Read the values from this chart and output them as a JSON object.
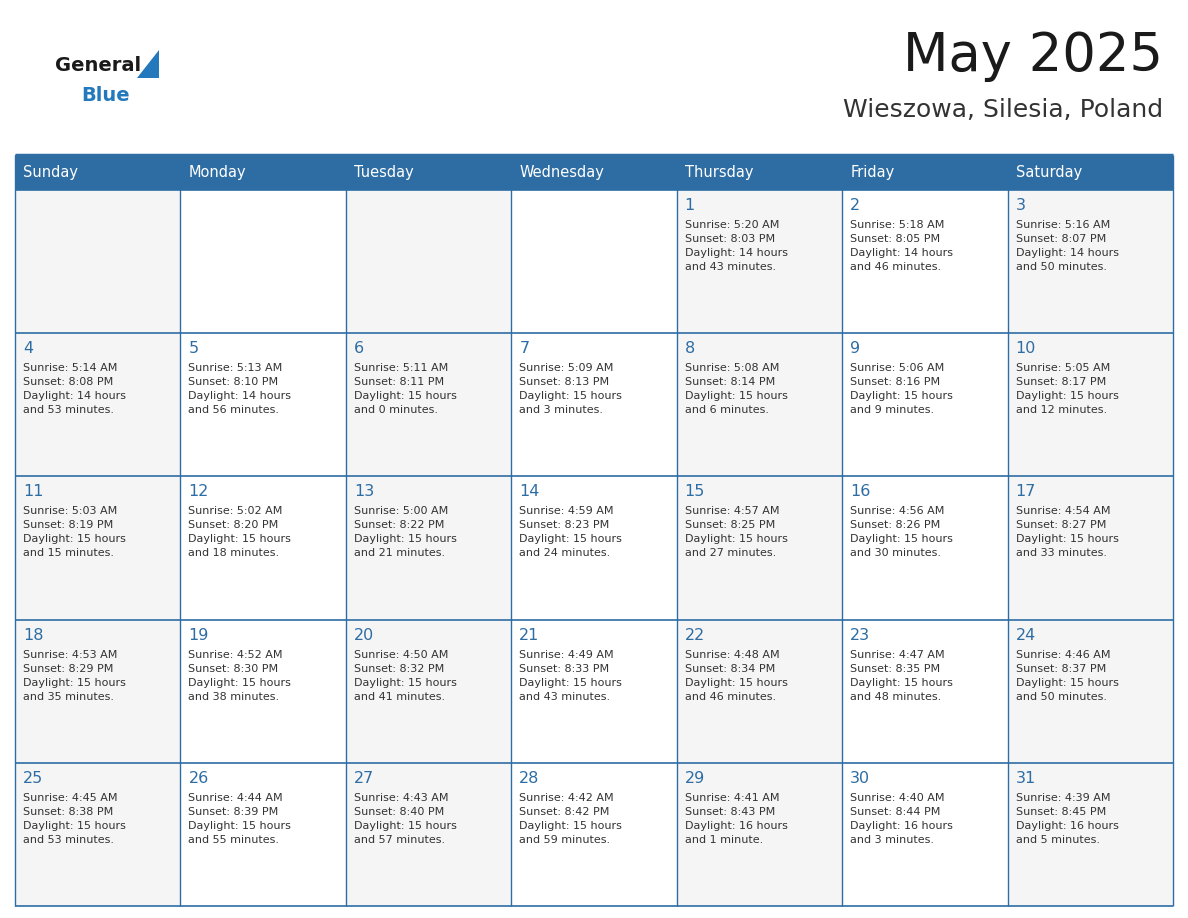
{
  "title": "May 2025",
  "subtitle": "Wieszowa, Silesia, Poland",
  "header_bg": "#2E6DA4",
  "header_text": "#FFFFFF",
  "cell_bg_even": "#F5F5F5",
  "cell_bg_odd": "#FFFFFF",
  "day_headers": [
    "Sunday",
    "Monday",
    "Tuesday",
    "Wednesday",
    "Thursday",
    "Friday",
    "Saturday"
  ],
  "title_color": "#1a1a1a",
  "subtitle_color": "#333333",
  "day_num_color": "#2E6DA4",
  "cell_text_color": "#333333",
  "grid_color": "#2E6DA4",
  "logo_general_color": "#1a1a1a",
  "logo_blue_color": "#2479BD",
  "weeks": [
    [
      {
        "day": "",
        "text": ""
      },
      {
        "day": "",
        "text": ""
      },
      {
        "day": "",
        "text": ""
      },
      {
        "day": "",
        "text": ""
      },
      {
        "day": "1",
        "text": "Sunrise: 5:20 AM\nSunset: 8:03 PM\nDaylight: 14 hours\nand 43 minutes."
      },
      {
        "day": "2",
        "text": "Sunrise: 5:18 AM\nSunset: 8:05 PM\nDaylight: 14 hours\nand 46 minutes."
      },
      {
        "day": "3",
        "text": "Sunrise: 5:16 AM\nSunset: 8:07 PM\nDaylight: 14 hours\nand 50 minutes."
      }
    ],
    [
      {
        "day": "4",
        "text": "Sunrise: 5:14 AM\nSunset: 8:08 PM\nDaylight: 14 hours\nand 53 minutes."
      },
      {
        "day": "5",
        "text": "Sunrise: 5:13 AM\nSunset: 8:10 PM\nDaylight: 14 hours\nand 56 minutes."
      },
      {
        "day": "6",
        "text": "Sunrise: 5:11 AM\nSunset: 8:11 PM\nDaylight: 15 hours\nand 0 minutes."
      },
      {
        "day": "7",
        "text": "Sunrise: 5:09 AM\nSunset: 8:13 PM\nDaylight: 15 hours\nand 3 minutes."
      },
      {
        "day": "8",
        "text": "Sunrise: 5:08 AM\nSunset: 8:14 PM\nDaylight: 15 hours\nand 6 minutes."
      },
      {
        "day": "9",
        "text": "Sunrise: 5:06 AM\nSunset: 8:16 PM\nDaylight: 15 hours\nand 9 minutes."
      },
      {
        "day": "10",
        "text": "Sunrise: 5:05 AM\nSunset: 8:17 PM\nDaylight: 15 hours\nand 12 minutes."
      }
    ],
    [
      {
        "day": "11",
        "text": "Sunrise: 5:03 AM\nSunset: 8:19 PM\nDaylight: 15 hours\nand 15 minutes."
      },
      {
        "day": "12",
        "text": "Sunrise: 5:02 AM\nSunset: 8:20 PM\nDaylight: 15 hours\nand 18 minutes."
      },
      {
        "day": "13",
        "text": "Sunrise: 5:00 AM\nSunset: 8:22 PM\nDaylight: 15 hours\nand 21 minutes."
      },
      {
        "day": "14",
        "text": "Sunrise: 4:59 AM\nSunset: 8:23 PM\nDaylight: 15 hours\nand 24 minutes."
      },
      {
        "day": "15",
        "text": "Sunrise: 4:57 AM\nSunset: 8:25 PM\nDaylight: 15 hours\nand 27 minutes."
      },
      {
        "day": "16",
        "text": "Sunrise: 4:56 AM\nSunset: 8:26 PM\nDaylight: 15 hours\nand 30 minutes."
      },
      {
        "day": "17",
        "text": "Sunrise: 4:54 AM\nSunset: 8:27 PM\nDaylight: 15 hours\nand 33 minutes."
      }
    ],
    [
      {
        "day": "18",
        "text": "Sunrise: 4:53 AM\nSunset: 8:29 PM\nDaylight: 15 hours\nand 35 minutes."
      },
      {
        "day": "19",
        "text": "Sunrise: 4:52 AM\nSunset: 8:30 PM\nDaylight: 15 hours\nand 38 minutes."
      },
      {
        "day": "20",
        "text": "Sunrise: 4:50 AM\nSunset: 8:32 PM\nDaylight: 15 hours\nand 41 minutes."
      },
      {
        "day": "21",
        "text": "Sunrise: 4:49 AM\nSunset: 8:33 PM\nDaylight: 15 hours\nand 43 minutes."
      },
      {
        "day": "22",
        "text": "Sunrise: 4:48 AM\nSunset: 8:34 PM\nDaylight: 15 hours\nand 46 minutes."
      },
      {
        "day": "23",
        "text": "Sunrise: 4:47 AM\nSunset: 8:35 PM\nDaylight: 15 hours\nand 48 minutes."
      },
      {
        "day": "24",
        "text": "Sunrise: 4:46 AM\nSunset: 8:37 PM\nDaylight: 15 hours\nand 50 minutes."
      }
    ],
    [
      {
        "day": "25",
        "text": "Sunrise: 4:45 AM\nSunset: 8:38 PM\nDaylight: 15 hours\nand 53 minutes."
      },
      {
        "day": "26",
        "text": "Sunrise: 4:44 AM\nSunset: 8:39 PM\nDaylight: 15 hours\nand 55 minutes."
      },
      {
        "day": "27",
        "text": "Sunrise: 4:43 AM\nSunset: 8:40 PM\nDaylight: 15 hours\nand 57 minutes."
      },
      {
        "day": "28",
        "text": "Sunrise: 4:42 AM\nSunset: 8:42 PM\nDaylight: 15 hours\nand 59 minutes."
      },
      {
        "day": "29",
        "text": "Sunrise: 4:41 AM\nSunset: 8:43 PM\nDaylight: 16 hours\nand 1 minute."
      },
      {
        "day": "30",
        "text": "Sunrise: 4:40 AM\nSunset: 8:44 PM\nDaylight: 16 hours\nand 3 minutes."
      },
      {
        "day": "31",
        "text": "Sunrise: 4:39 AM\nSunset: 8:45 PM\nDaylight: 16 hours\nand 5 minutes."
      }
    ]
  ]
}
